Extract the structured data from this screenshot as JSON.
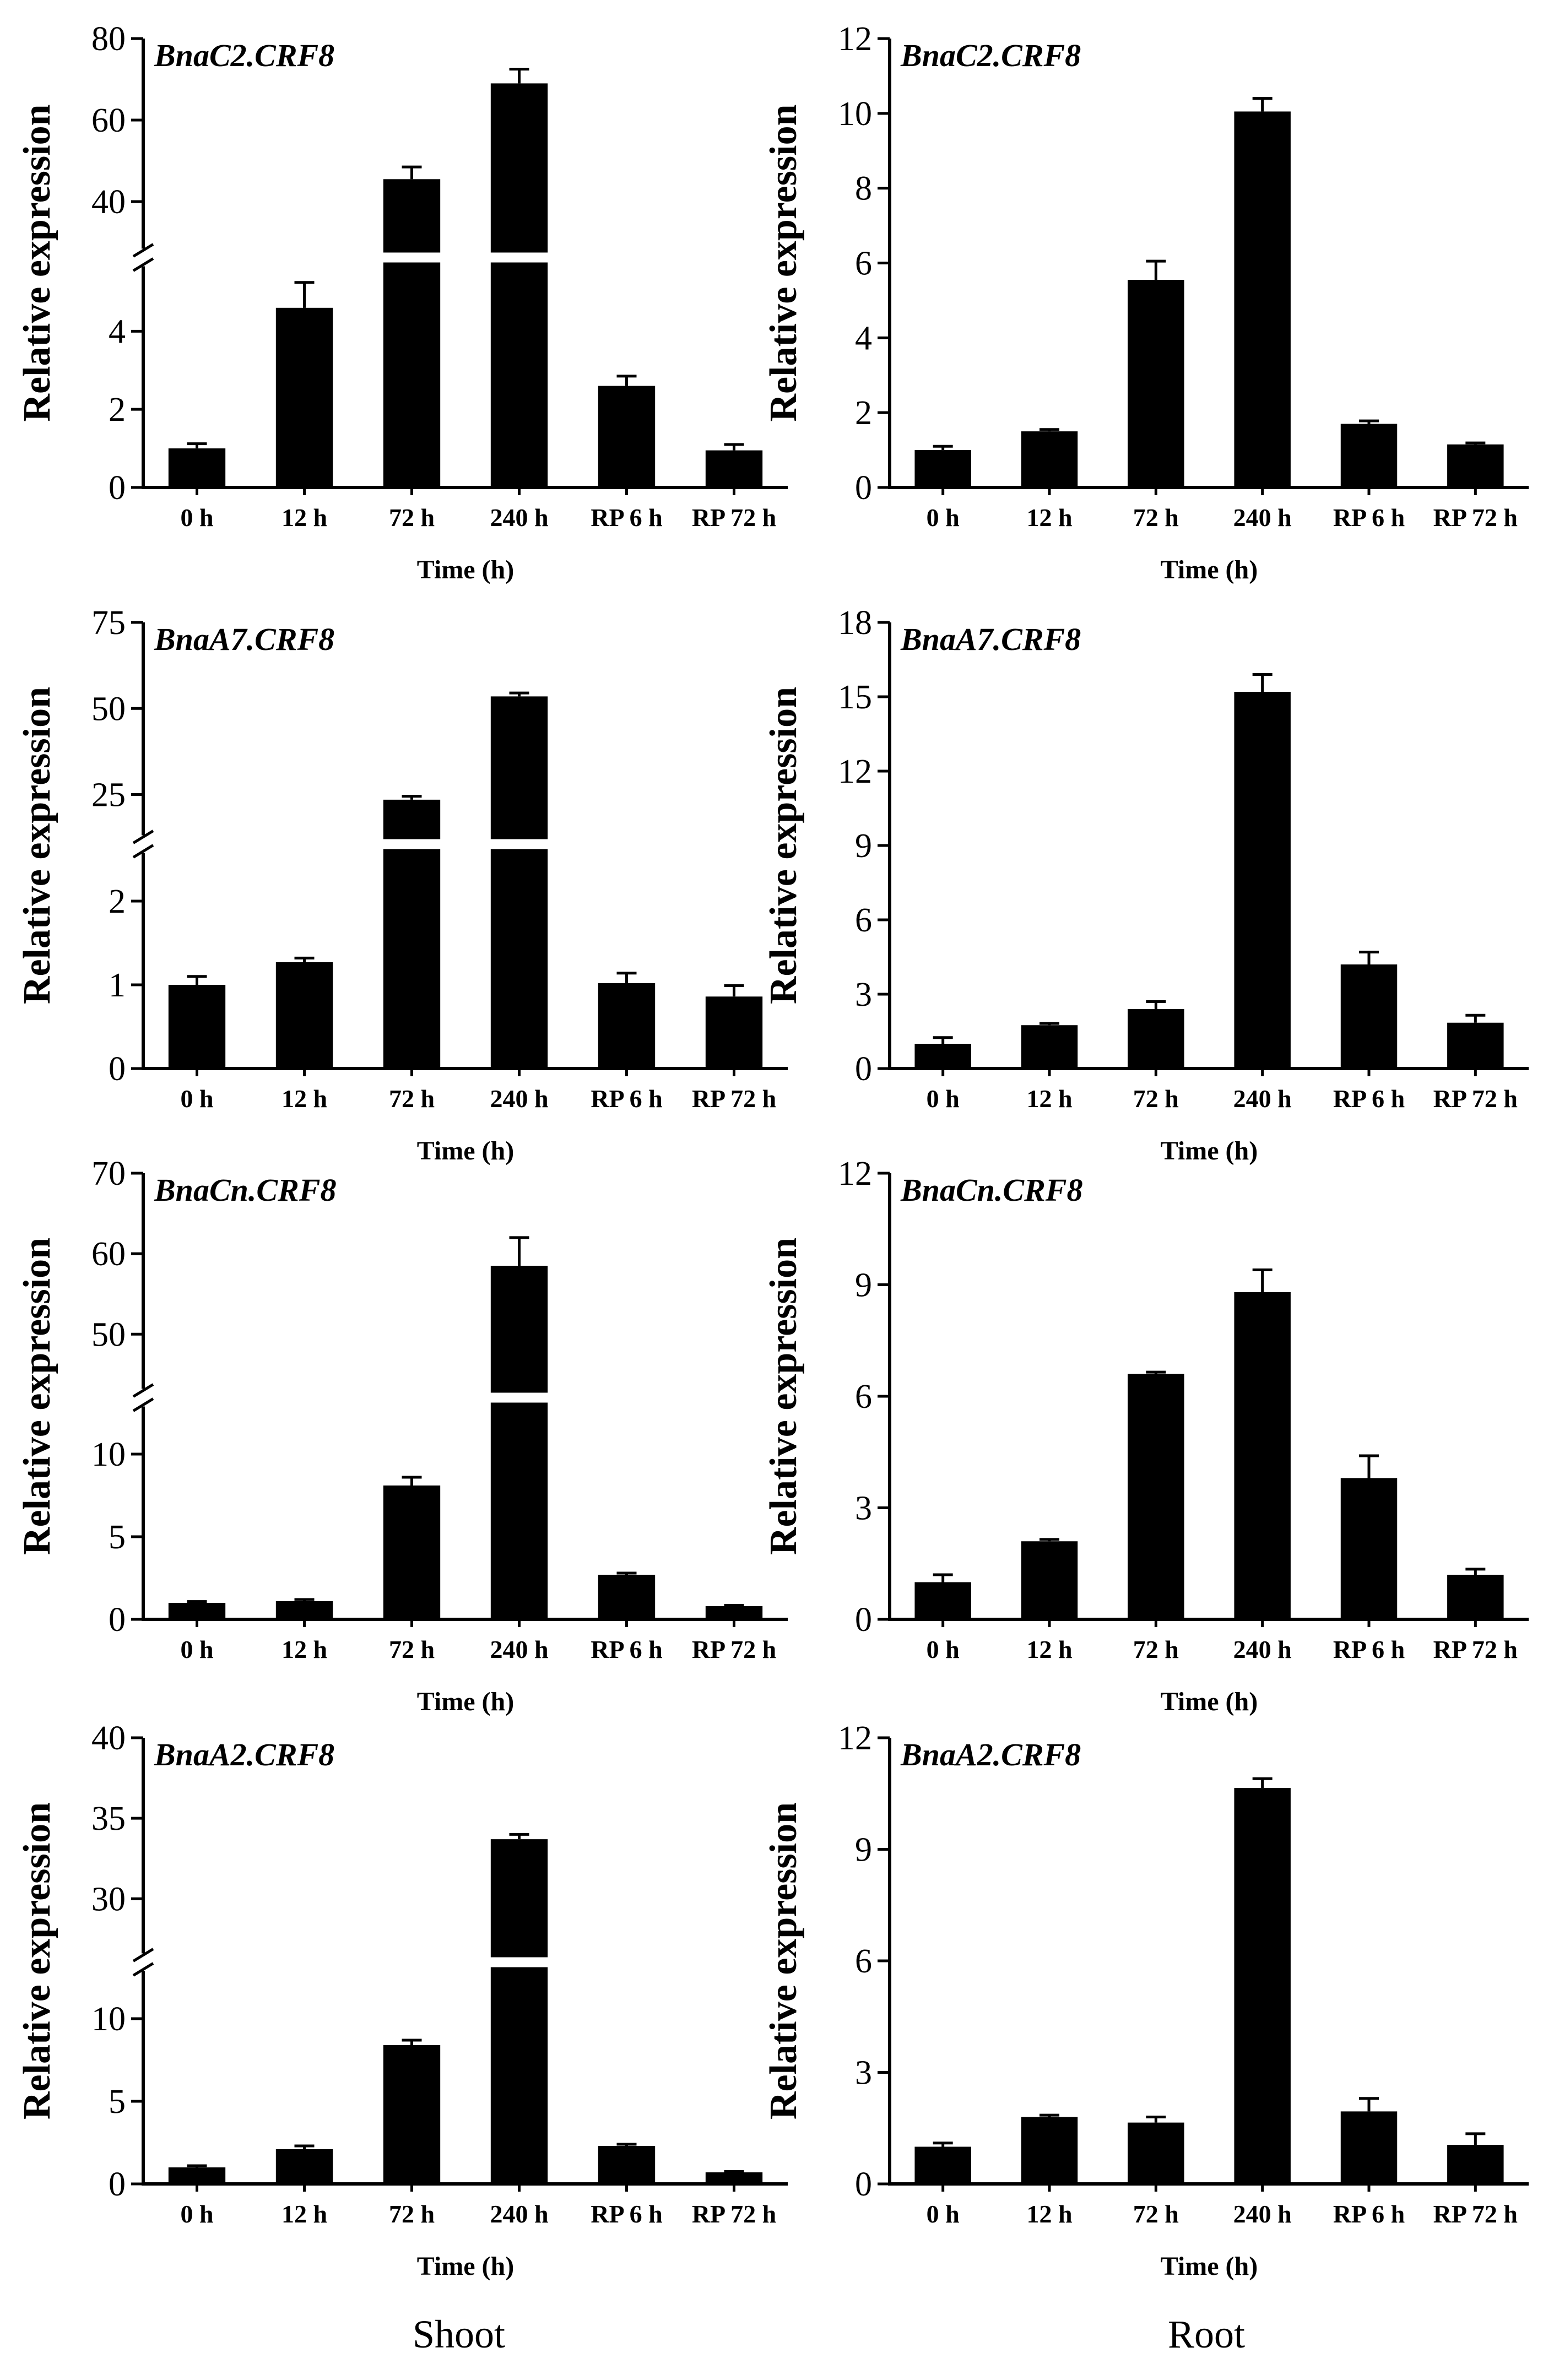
{
  "column_titles": [
    "Shoot",
    "Root"
  ],
  "chart_data": [
    {
      "type": "bar",
      "panel": "shoot-1",
      "column": 0,
      "row": 0,
      "title": "BnaC2.CRF8",
      "xlabel": "Time (h)",
      "ylabel": "Relative expression",
      "categories": [
        "0 h",
        "12 h",
        "72 h",
        "240 h",
        "RP 6 h",
        "RP 72 h"
      ],
      "values": [
        1.0,
        4.6,
        45.5,
        69.0,
        2.6,
        0.95
      ],
      "errors": [
        0.12,
        0.65,
        3.0,
        3.5,
        0.25,
        0.15
      ],
      "broken_axis": true,
      "lower": {
        "ylim": [
          0,
          5.5
        ],
        "ticks": [
          0,
          2,
          4
        ]
      },
      "upper": {
        "ylim": [
          30,
          80
        ],
        "ticks": [
          40,
          60,
          80
        ]
      }
    },
    {
      "type": "bar",
      "panel": "root-1",
      "column": 1,
      "row": 0,
      "title": "BnaC2.CRF8",
      "xlabel": "Time (h)",
      "ylabel": "Relative expression",
      "categories": [
        "0 h",
        "12 h",
        "72 h",
        "240 h",
        "RP 6 h",
        "RP 72 h"
      ],
      "values": [
        1.0,
        1.5,
        5.55,
        10.05,
        1.7,
        1.15
      ],
      "errors": [
        0.1,
        0.05,
        0.5,
        0.35,
        0.08,
        0.04
      ],
      "broken_axis": false,
      "ylim": [
        0,
        12
      ],
      "ticks": [
        0,
        2,
        4,
        6,
        8,
        10,
        12
      ]
    },
    {
      "type": "bar",
      "panel": "shoot-2",
      "column": 0,
      "row": 1,
      "title": "BnaA7.CRF8",
      "xlabel": "Time (h)",
      "ylabel": "Relative expression",
      "categories": [
        "0 h",
        "12 h",
        "72 h",
        "240 h",
        "RP 6 h",
        "RP 72 h"
      ],
      "values": [
        1.0,
        1.27,
        23.5,
        53.5,
        1.02,
        0.86
      ],
      "errors": [
        0.1,
        0.05,
        1.0,
        1.0,
        0.12,
        0.13
      ],
      "broken_axis": true,
      "lower": {
        "ylim": [
          0,
          2.5
        ],
        "ticks": [
          0,
          1,
          2
        ]
      },
      "upper": {
        "ylim": [
          15,
          75
        ],
        "ticks": [
          25,
          50,
          75
        ]
      }
    },
    {
      "type": "bar",
      "panel": "root-2",
      "column": 1,
      "row": 1,
      "title": "BnaA7.CRF8",
      "xlabel": "Time (h)",
      "ylabel": "Relative expression",
      "categories": [
        "0 h",
        "12 h",
        "72 h",
        "240 h",
        "RP 6 h",
        "RP 72 h"
      ],
      "values": [
        1.0,
        1.75,
        2.4,
        15.2,
        4.2,
        1.85
      ],
      "errors": [
        0.25,
        0.07,
        0.3,
        0.7,
        0.5,
        0.3
      ],
      "broken_axis": false,
      "ylim": [
        0,
        18
      ],
      "ticks": [
        0,
        3,
        6,
        9,
        12,
        15,
        18
      ]
    },
    {
      "type": "bar",
      "panel": "shoot-3",
      "column": 0,
      "row": 2,
      "title": "BnaCn.CRF8",
      "xlabel": "Time (h)",
      "ylabel": "Relative expression",
      "categories": [
        "0 h",
        "12 h",
        "72 h",
        "240 h",
        "RP 6 h",
        "RP 72 h"
      ],
      "values": [
        1.0,
        1.1,
        8.1,
        58.5,
        2.7,
        0.8
      ],
      "errors": [
        0.08,
        0.1,
        0.5,
        3.5,
        0.1,
        0.05
      ],
      "broken_axis": true,
      "lower": {
        "ylim": [
          0,
          12.5
        ],
        "ticks": [
          0,
          5,
          10
        ]
      },
      "upper": {
        "ylim": [
          44,
          70
        ],
        "ticks": [
          50,
          60,
          70
        ]
      }
    },
    {
      "type": "bar",
      "panel": "root-3",
      "column": 1,
      "row": 2,
      "title": "BnaCn.CRF8",
      "xlabel": "Time (h)",
      "ylabel": "Relative expression",
      "categories": [
        "0 h",
        "12 h",
        "72 h",
        "240 h",
        "RP 6 h",
        "RP 72 h"
      ],
      "values": [
        1.0,
        2.1,
        6.6,
        8.8,
        3.8,
        1.2
      ],
      "errors": [
        0.2,
        0.05,
        0.05,
        0.6,
        0.6,
        0.15
      ],
      "broken_axis": false,
      "ylim": [
        0,
        12
      ],
      "ticks": [
        0,
        3,
        6,
        9,
        12
      ]
    },
    {
      "type": "bar",
      "panel": "shoot-4",
      "column": 0,
      "row": 3,
      "title": "BnaA2.CRF8",
      "xlabel": "Time (h)",
      "ylabel": "Relative expression",
      "categories": [
        "0 h",
        "12 h",
        "72 h",
        "240 h",
        "RP 6 h",
        "RP 72 h"
      ],
      "values": [
        1.0,
        2.1,
        8.4,
        33.7,
        2.3,
        0.7
      ],
      "errors": [
        0.1,
        0.2,
        0.3,
        0.3,
        0.1,
        0.05
      ],
      "broken_axis": true,
      "lower": {
        "ylim": [
          0,
          12.5
        ],
        "ticks": [
          0,
          5,
          10
        ]
      },
      "upper": {
        "ylim": [
          27,
          40
        ],
        "ticks": [
          30,
          35,
          40
        ]
      }
    },
    {
      "type": "bar",
      "panel": "root-4",
      "column": 1,
      "row": 3,
      "title": "BnaA2.CRF8",
      "xlabel": "Time (h)",
      "ylabel": "Relative expression",
      "categories": [
        "0 h",
        "12 h",
        "72 h",
        "240 h",
        "RP 6 h",
        "RP 72 h"
      ],
      "values": [
        1.0,
        1.8,
        1.65,
        10.65,
        1.95,
        1.05
      ],
      "errors": [
        0.1,
        0.05,
        0.15,
        0.25,
        0.35,
        0.3
      ],
      "broken_axis": false,
      "ylim": [
        0,
        12
      ],
      "ticks": [
        0,
        3,
        6,
        9,
        12
      ]
    }
  ]
}
